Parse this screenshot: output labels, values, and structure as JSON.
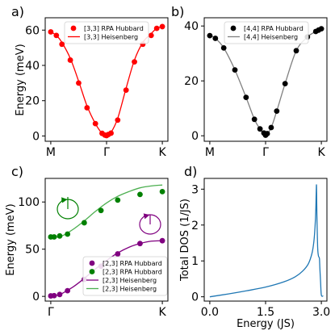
{
  "chart_data": [
    {
      "panel": "a)",
      "type": "line",
      "ylabel": "Energy (meV)",
      "xticks": [
        "M",
        "Γ",
        "K"
      ],
      "yticks": [
        0,
        20,
        40,
        60
      ],
      "xlim": [
        -1.1,
        1.1
      ],
      "ylim": [
        -3,
        67
      ],
      "legend_position": "top-center",
      "series": [
        {
          "name": "[3,3] RPA Hubbard",
          "kind": "scatter",
          "color": "#ff0000",
          "x": [
            -1.0,
            -0.9,
            -0.8,
            -0.65,
            -0.5,
            -0.35,
            -0.2,
            -0.08,
            -0.03,
            0.0,
            0.03,
            0.08,
            0.2,
            0.35,
            0.5,
            0.65,
            0.8,
            0.9,
            1.0
          ],
          "y": [
            59,
            57,
            52,
            43,
            30,
            16,
            7,
            1.5,
            0.5,
            0.2,
            0.8,
            1.6,
            9,
            26,
            42,
            52,
            57,
            61,
            62
          ]
        },
        {
          "name": "[3,3] Heisenberg",
          "kind": "line",
          "color": "#ff0000",
          "x": [
            -1.0,
            -0.9,
            -0.8,
            -0.65,
            -0.5,
            -0.35,
            -0.2,
            -0.08,
            0.0,
            0.08,
            0.2,
            0.35,
            0.5,
            0.65,
            0.8,
            0.9,
            1.0
          ],
          "y": [
            59,
            57,
            53,
            44,
            31,
            17,
            7,
            1.5,
            0.2,
            2,
            10,
            27,
            43,
            53,
            58,
            61,
            62
          ]
        }
      ]
    },
    {
      "panel": "b)",
      "type": "line",
      "xticks": [
        "M",
        "Γ",
        "K"
      ],
      "yticks": [
        0,
        20,
        40
      ],
      "xlim": [
        -1.1,
        1.1
      ],
      "ylim": [
        -2,
        43
      ],
      "legend_position": "top-center",
      "series": [
        {
          "name": "[4,4] RPA Hubbard",
          "kind": "scatter",
          "color": "#000000",
          "x": [
            -1.0,
            -0.9,
            -0.75,
            -0.55,
            -0.35,
            -0.2,
            -0.1,
            -0.03,
            0.0,
            0.03,
            0.1,
            0.2,
            0.35,
            0.55,
            0.75,
            0.9,
            0.95,
            1.0
          ],
          "y": [
            36.5,
            35.5,
            32,
            24,
            14,
            6,
            2.5,
            1,
            0.2,
            0.8,
            3,
            9,
            19,
            31,
            36,
            38,
            38.5,
            39
          ]
        },
        {
          "name": "[4,4] Heisenberg",
          "kind": "line",
          "color": "#808080",
          "x": [
            -1.0,
            -0.9,
            -0.75,
            -0.55,
            -0.35,
            -0.2,
            -0.1,
            0.0,
            0.1,
            0.2,
            0.35,
            0.55,
            0.75,
            0.9,
            1.0
          ],
          "y": [
            36.5,
            35.5,
            32,
            24,
            14,
            6,
            2.5,
            0.2,
            3,
            9,
            19,
            31,
            36,
            38,
            39
          ]
        }
      ]
    },
    {
      "panel": "c)",
      "type": "line",
      "ylabel": "Energy (meV)",
      "xticks": [
        "Γ",
        "K"
      ],
      "yticks": [
        0,
        50,
        100
      ],
      "xlim": [
        -0.05,
        1.05
      ],
      "ylim": [
        -5,
        125
      ],
      "legend_position": "lower-right",
      "series": [
        {
          "name": "[2,3] RPA Hubbard",
          "kind": "scatter",
          "color": "#800080",
          "x": [
            0.0,
            0.03,
            0.08,
            0.15,
            0.3,
            0.45,
            0.6,
            0.8,
            1.0
          ],
          "y": [
            0.5,
            0.8,
            2,
            6,
            18,
            32,
            45,
            56,
            59
          ]
        },
        {
          "name": "[2,3] RPA Hubbard",
          "kind": "scatter",
          "color": "#008000",
          "x": [
            0.0,
            0.03,
            0.08,
            0.15,
            0.3,
            0.45,
            0.6,
            0.8,
            1.0
          ],
          "y": [
            63,
            63,
            64,
            66,
            78,
            91,
            102,
            108,
            111
          ]
        },
        {
          "name": "[2,3] Heisenberg",
          "kind": "line",
          "color": "#800080",
          "x": [
            0.0,
            0.05,
            0.1,
            0.2,
            0.3,
            0.4,
            0.5,
            0.6,
            0.7,
            0.8,
            0.9,
            1.0
          ],
          "y": [
            0,
            0.8,
            3,
            10,
            19,
            29,
            38,
            46,
            52,
            56,
            58.5,
            59
          ]
        },
        {
          "name": "[2,3] Heisenberg",
          "kind": "line",
          "color": "#4caf50",
          "x": [
            0.0,
            0.05,
            0.1,
            0.2,
            0.3,
            0.4,
            0.5,
            0.6,
            0.7,
            0.8,
            0.9,
            1.0
          ],
          "y": [
            62,
            62.8,
            64,
            71,
            80,
            90,
            99,
            106,
            111,
            115,
            117,
            118
          ]
        }
      ]
    },
    {
      "panel": "d)",
      "type": "line",
      "xlabel": "Energy (JS)",
      "ylabel": "Total DOS (1/JS)",
      "xticks": [
        "0.0",
        "1.5",
        "3.0"
      ],
      "xtick_values": [
        0,
        1.5,
        3.0
      ],
      "yticks": [
        0,
        1,
        2,
        3
      ],
      "xlim": [
        -0.15,
        3.15
      ],
      "ylim": [
        -0.12,
        3.3
      ],
      "series": [
        {
          "kind": "line",
          "color": "#1f77b4",
          "x": [
            0.0,
            0.5,
            1.0,
            1.5,
            2.0,
            2.3,
            2.5,
            2.65,
            2.75,
            2.8,
            2.83,
            2.85,
            2.86,
            2.87,
            2.88,
            2.9,
            2.92,
            2.94,
            2.95,
            2.96,
            2.98,
            3.0,
            3.05
          ],
          "y": [
            0.0,
            0.08,
            0.17,
            0.27,
            0.42,
            0.56,
            0.72,
            0.92,
            1.22,
            1.55,
            1.95,
            2.4,
            2.85,
            3.1,
            2.3,
            1.4,
            1.15,
            1.1,
            1.05,
            0.8,
            0.4,
            0.05,
            0.02
          ]
        }
      ]
    }
  ]
}
